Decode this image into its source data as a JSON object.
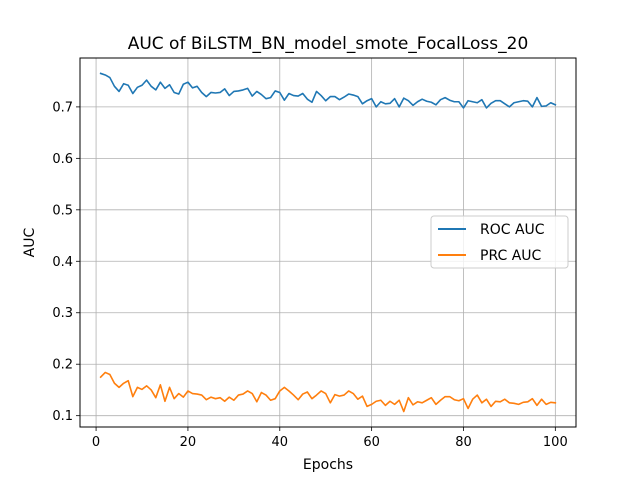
{
  "chart_data": {
    "type": "line",
    "title": "AUC of BiLSTM_BN_model_smote_FocalLoss_20",
    "xlabel": "Epochs",
    "ylabel": "AUC",
    "xlim": [
      -3.5,
      104.5
    ],
    "ylim": [
      0.078,
      0.795
    ],
    "xticks": [
      0,
      20,
      40,
      60,
      80,
      100
    ],
    "yticks": [
      0.1,
      0.2,
      0.3,
      0.4,
      0.5,
      0.6,
      0.7
    ],
    "ytick_labels": [
      "0.1",
      "0.2",
      "0.3",
      "0.4",
      "0.5",
      "0.6",
      "0.7"
    ],
    "grid": true,
    "legend_position": "center-right",
    "x": [
      1,
      2,
      3,
      4,
      5,
      6,
      7,
      8,
      9,
      10,
      11,
      12,
      13,
      14,
      15,
      16,
      17,
      18,
      19,
      20,
      21,
      22,
      23,
      24,
      25,
      26,
      27,
      28,
      29,
      30,
      31,
      32,
      33,
      34,
      35,
      36,
      37,
      38,
      39,
      40,
      41,
      42,
      43,
      44,
      45,
      46,
      47,
      48,
      49,
      50,
      51,
      52,
      53,
      54,
      55,
      56,
      57,
      58,
      59,
      60,
      61,
      62,
      63,
      64,
      65,
      66,
      67,
      68,
      69,
      70,
      71,
      72,
      73,
      74,
      75,
      76,
      77,
      78,
      79,
      80,
      81,
      82,
      83,
      84,
      85,
      86,
      87,
      88,
      89,
      90,
      91,
      92,
      93,
      94,
      95,
      96,
      97,
      98,
      99,
      100
    ],
    "series": [
      {
        "name": "ROC AUC",
        "color": "#1f77b4",
        "values": [
          0.765,
          0.762,
          0.757,
          0.74,
          0.73,
          0.745,
          0.742,
          0.726,
          0.738,
          0.742,
          0.752,
          0.74,
          0.733,
          0.748,
          0.736,
          0.743,
          0.728,
          0.725,
          0.744,
          0.748,
          0.737,
          0.74,
          0.728,
          0.72,
          0.728,
          0.727,
          0.728,
          0.735,
          0.722,
          0.73,
          0.731,
          0.733,
          0.736,
          0.721,
          0.73,
          0.724,
          0.716,
          0.718,
          0.731,
          0.728,
          0.713,
          0.726,
          0.722,
          0.721,
          0.726,
          0.715,
          0.709,
          0.73,
          0.722,
          0.712,
          0.72,
          0.72,
          0.714,
          0.719,
          0.725,
          0.723,
          0.72,
          0.706,
          0.712,
          0.716,
          0.7,
          0.71,
          0.706,
          0.707,
          0.716,
          0.7,
          0.717,
          0.712,
          0.703,
          0.71,
          0.715,
          0.711,
          0.709,
          0.704,
          0.714,
          0.718,
          0.713,
          0.71,
          0.71,
          0.698,
          0.712,
          0.71,
          0.708,
          0.714,
          0.698,
          0.707,
          0.712,
          0.712,
          0.706,
          0.7,
          0.708,
          0.71,
          0.712,
          0.711,
          0.7,
          0.718,
          0.701,
          0.702,
          0.708,
          0.704
        ]
      },
      {
        "name": "PRC AUC",
        "color": "#ff7f0e",
        "values": [
          0.175,
          0.184,
          0.18,
          0.163,
          0.155,
          0.163,
          0.168,
          0.137,
          0.155,
          0.151,
          0.158,
          0.15,
          0.135,
          0.16,
          0.128,
          0.155,
          0.133,
          0.143,
          0.136,
          0.148,
          0.143,
          0.142,
          0.14,
          0.131,
          0.136,
          0.133,
          0.135,
          0.128,
          0.136,
          0.13,
          0.14,
          0.142,
          0.148,
          0.143,
          0.127,
          0.145,
          0.14,
          0.13,
          0.133,
          0.148,
          0.155,
          0.148,
          0.14,
          0.131,
          0.142,
          0.146,
          0.133,
          0.14,
          0.148,
          0.143,
          0.125,
          0.141,
          0.138,
          0.14,
          0.148,
          0.143,
          0.132,
          0.138,
          0.118,
          0.122,
          0.128,
          0.13,
          0.12,
          0.128,
          0.122,
          0.13,
          0.108,
          0.135,
          0.121,
          0.127,
          0.125,
          0.13,
          0.135,
          0.122,
          0.13,
          0.137,
          0.137,
          0.131,
          0.129,
          0.133,
          0.114,
          0.132,
          0.14,
          0.125,
          0.132,
          0.118,
          0.128,
          0.127,
          0.132,
          0.125,
          0.124,
          0.122,
          0.126,
          0.127,
          0.133,
          0.12,
          0.132,
          0.122,
          0.126,
          0.125
        ]
      }
    ]
  }
}
